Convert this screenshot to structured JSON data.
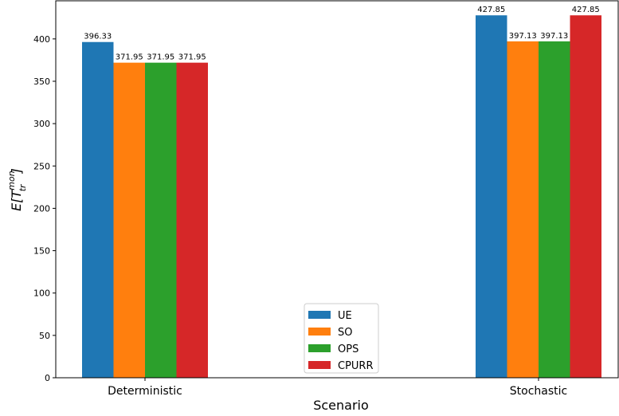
{
  "chart_data": {
    "type": "bar",
    "title": "",
    "xlabel": "Scenario",
    "ylabel_base": "E[T",
    "ylabel_sub": "tr",
    "ylabel_sup": "mon",
    "ylabel_close": "]",
    "categories": [
      "Deterministic",
      "Stochastic"
    ],
    "series": [
      {
        "name": "UE",
        "color": "#1f77b4",
        "values": [
          396.33,
          427.85
        ],
        "labels": [
          "396.33",
          "427.85"
        ]
      },
      {
        "name": "SO",
        "color": "#ff7f0e",
        "values": [
          371.95,
          397.13
        ],
        "labels": [
          "371.95",
          "397.13"
        ]
      },
      {
        "name": "OPS",
        "color": "#2ca02c",
        "values": [
          371.95,
          397.13
        ],
        "labels": [
          "371.95",
          "397.13"
        ]
      },
      {
        "name": "CPURR",
        "color": "#d62728",
        "values": [
          371.95,
          427.85
        ],
        "labels": [
          "371.95",
          "427.85"
        ]
      }
    ],
    "ylim": [
      0,
      445
    ],
    "yticks": [
      0,
      50,
      100,
      150,
      200,
      250,
      300,
      350,
      400
    ],
    "ytick_labels": [
      "0",
      "50",
      "100",
      "150",
      "200",
      "250",
      "300",
      "350",
      "400"
    ],
    "grid": false,
    "legend_position": "bottom-center"
  }
}
